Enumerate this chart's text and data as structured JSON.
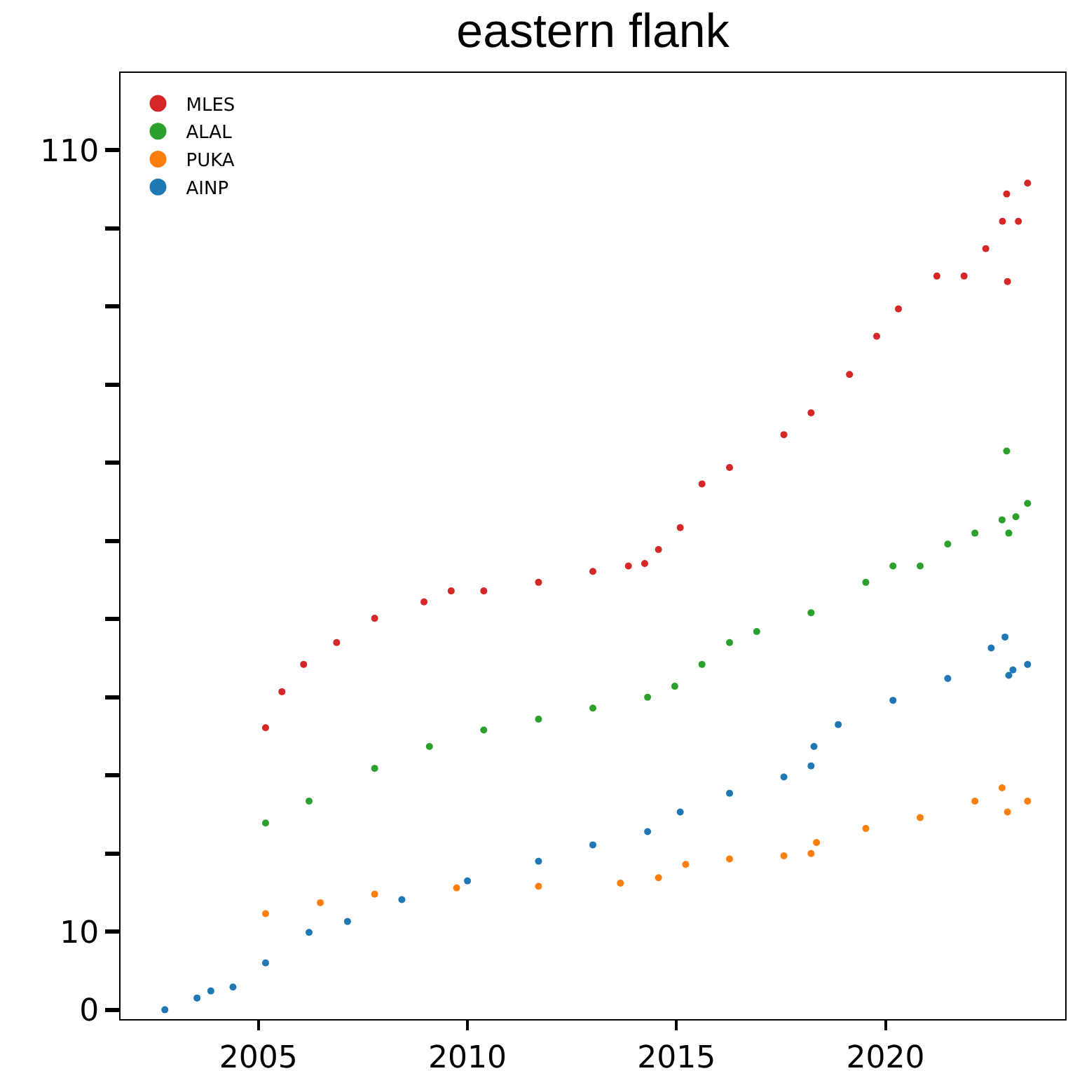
{
  "chart_data": {
    "type": "scatter",
    "title": "eastern flank",
    "marker": "circle",
    "legend": "top left",
    "grid": false,
    "xlim": [
      2001.7,
      2024.3
    ],
    "xticks": [
      2005,
      2010,
      2015,
      2020
    ],
    "ylim": [
      -1.2,
      119.9
    ],
    "yticks": [
      0,
      10,
      {
        "value": 20,
        "label": null
      },
      {
        "value": 30,
        "label": null
      },
      {
        "value": 40,
        "label": null
      },
      {
        "value": 50,
        "label": null
      },
      {
        "value": 60,
        "label": null
      },
      {
        "value": 70,
        "label": null
      },
      {
        "value": 80,
        "label": null
      },
      {
        "value": 90,
        "label": null
      },
      {
        "value": 100,
        "label": null
      },
      110
    ],
    "series": [
      {
        "name": "MLES",
        "color": "#d62728",
        "x": [
          2005.17,
          2005.56,
          2006.08,
          2006.87,
          2007.78,
          2008.96,
          2009.61,
          2010.39,
          2011.7,
          2013.0,
          2013.85,
          2014.24,
          2014.57,
          2015.09,
          2015.61,
          2016.27,
          2017.57,
          2018.22,
          2019.14,
          2019.79,
          2020.31,
          2021.23,
          2021.88,
          2022.4,
          2022.8,
          2022.9,
          2022.92,
          2023.18,
          2023.4
        ],
        "values": [
          36.1,
          40.7,
          44.2,
          47.0,
          50.1,
          52.2,
          53.6,
          53.6,
          54.7,
          56.1,
          56.8,
          57.1,
          58.9,
          61.7,
          67.3,
          69.4,
          73.6,
          76.4,
          81.3,
          86.2,
          89.7,
          93.9,
          93.9,
          97.4,
          100.9,
          104.4,
          93.2,
          100.9,
          105.8
        ]
      },
      {
        "name": "ALAL",
        "color": "#2ca02c",
        "x": [
          2005.17,
          2006.21,
          2007.78,
          2009.09,
          2010.39,
          2011.7,
          2013.0,
          2014.31,
          2014.96,
          2015.61,
          2016.27,
          2016.92,
          2018.22,
          2019.53,
          2020.18,
          2020.83,
          2021.49,
          2022.14,
          2022.79,
          2022.9,
          2022.95,
          2023.12,
          2023.4
        ],
        "values": [
          23.9,
          26.7,
          30.9,
          33.7,
          35.8,
          37.2,
          38.6,
          40.0,
          41.4,
          44.2,
          47.0,
          48.4,
          50.8,
          54.7,
          56.8,
          56.8,
          59.6,
          61.0,
          62.7,
          71.5,
          61.0,
          63.1,
          64.8
        ]
      },
      {
        "name": "PUKA",
        "color": "#ff7f0e",
        "x": [
          2005.17,
          2006.48,
          2007.78,
          2009.74,
          2011.7,
          2013.66,
          2014.57,
          2015.22,
          2016.27,
          2017.57,
          2018.22,
          2018.35,
          2019.53,
          2020.83,
          2022.14,
          2022.79,
          2022.92,
          2023.4
        ],
        "values": [
          12.3,
          13.7,
          14.8,
          15.6,
          15.8,
          16.2,
          16.9,
          18.6,
          19.3,
          19.7,
          20.0,
          21.4,
          23.2,
          24.6,
          26.7,
          28.4,
          25.3,
          26.7
        ]
      },
      {
        "name": "AINP",
        "color": "#1f77b4",
        "x": [
          2002.76,
          2003.53,
          2003.86,
          2004.39,
          2005.17,
          2006.21,
          2007.13,
          2008.43,
          2010.0,
          2011.7,
          2013.0,
          2014.31,
          2015.09,
          2016.27,
          2017.57,
          2018.22,
          2018.29,
          2018.87,
          2020.18,
          2021.49,
          2022.53,
          2022.86,
          2022.95,
          2023.05,
          2023.4
        ],
        "values": [
          0.0,
          1.5,
          2.4,
          2.9,
          6.0,
          9.9,
          11.3,
          14.1,
          16.5,
          19.0,
          21.1,
          22.8,
          25.3,
          27.7,
          29.8,
          31.2,
          33.7,
          36.5,
          39.6,
          42.4,
          46.3,
          47.7,
          42.8,
          43.5,
          44.2
        ]
      }
    ]
  }
}
